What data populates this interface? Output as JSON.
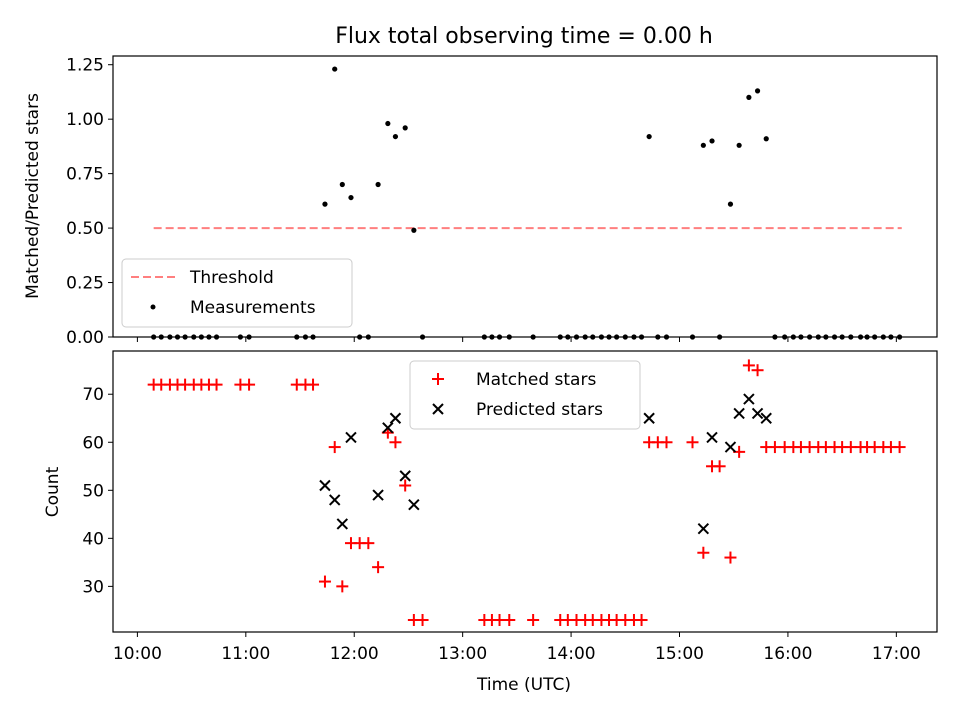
{
  "chart_data": [
    {
      "type": "scatter",
      "title": "Flux total observing time = 0.00 h",
      "xlabel": "",
      "ylabel": "Matched/Predicted stars",
      "xlim": [
        9.775,
        17.375
      ],
      "ylim": [
        0,
        1.29
      ],
      "yticks": [
        0.0,
        0.25,
        0.5,
        0.75,
        1.0,
        1.25
      ],
      "ytick_labels": [
        "0.00",
        "0.25",
        "0.50",
        "0.75",
        "1.00",
        "1.25"
      ],
      "grid": false,
      "legend": "lower-left",
      "threshold": {
        "name": "Threshold",
        "value": 0.5,
        "x": [
          10.15,
          17.05
        ],
        "color": "#ff7f7f"
      },
      "series": [
        {
          "name": "Measurements",
          "color": "#000000",
          "x": [
            10.15,
            10.22,
            10.3,
            10.37,
            10.44,
            10.52,
            10.59,
            10.66,
            10.73,
            10.95,
            11.03,
            11.47,
            11.55,
            11.62,
            11.73,
            11.82,
            11.89,
            11.97,
            12.05,
            12.13,
            12.22,
            12.31,
            12.38,
            12.47,
            12.55,
            12.63,
            13.2,
            13.27,
            13.34,
            13.43,
            13.65,
            13.9,
            13.97,
            14.05,
            14.13,
            14.2,
            14.28,
            14.35,
            14.42,
            14.5,
            14.58,
            14.65,
            14.72,
            14.8,
            14.88,
            15.12,
            15.22,
            15.3,
            15.37,
            15.47,
            15.55,
            15.64,
            15.72,
            15.8,
            15.88,
            15.97,
            16.05,
            16.12,
            16.2,
            16.28,
            16.35,
            16.43,
            16.5,
            16.58,
            16.67,
            16.73,
            16.8,
            16.88,
            16.95,
            17.03
          ],
          "y": [
            0,
            0,
            0,
            0,
            0,
            0,
            0,
            0,
            0,
            0,
            0,
            0,
            0,
            0,
            0.61,
            1.23,
            0.7,
            0.64,
            0,
            0,
            0.7,
            0.98,
            0.92,
            0.96,
            0.49,
            0,
            0,
            0,
            0,
            0,
            0,
            0,
            0,
            0,
            0,
            0,
            0,
            0,
            0,
            0,
            0,
            0,
            0.92,
            0,
            0,
            0,
            0.88,
            0.9,
            0,
            0.61,
            0.88,
            1.1,
            1.13,
            0.91,
            0,
            0,
            0,
            0,
            0,
            0,
            0,
            0,
            0,
            0,
            0,
            0,
            0,
            0,
            0,
            0
          ]
        }
      ]
    },
    {
      "type": "scatter",
      "title": "",
      "xlabel": "Time (UTC)",
      "ylabel": "Count",
      "xlim": [
        9.775,
        17.375
      ],
      "ylim": [
        20.5,
        79
      ],
      "yticks": [
        30,
        40,
        50,
        60,
        70
      ],
      "ytick_labels": [
        "30",
        "40",
        "50",
        "60",
        "70"
      ],
      "xticks": [
        10,
        11,
        12,
        13,
        14,
        15,
        16,
        17
      ],
      "xtick_labels": [
        "10:00",
        "11:00",
        "12:00",
        "13:00",
        "14:00",
        "15:00",
        "16:00",
        "17:00"
      ],
      "grid": false,
      "legend": "upper-center",
      "series": [
        {
          "name": "Matched stars",
          "marker": "+",
          "color": "#ff0000",
          "x": [
            10.15,
            10.22,
            10.3,
            10.37,
            10.44,
            10.52,
            10.59,
            10.66,
            10.73,
            10.95,
            11.03,
            11.47,
            11.55,
            11.62,
            11.73,
            11.82,
            11.89,
            11.97,
            12.05,
            12.13,
            12.22,
            12.31,
            12.38,
            12.47,
            12.55,
            12.63,
            13.2,
            13.27,
            13.34,
            13.43,
            13.65,
            13.9,
            13.97,
            14.05,
            14.13,
            14.2,
            14.28,
            14.35,
            14.42,
            14.5,
            14.58,
            14.65,
            14.72,
            14.8,
            14.88,
            15.12,
            15.22,
            15.3,
            15.37,
            15.47,
            15.55,
            15.64,
            15.72,
            15.8,
            15.88,
            15.97,
            16.05,
            16.12,
            16.2,
            16.28,
            16.35,
            16.43,
            16.5,
            16.58,
            16.67,
            16.73,
            16.8,
            16.88,
            16.95,
            17.03
          ],
          "y": [
            72,
            72,
            72,
            72,
            72,
            72,
            72,
            72,
            72,
            72,
            72,
            72,
            72,
            72,
            31,
            59,
            30,
            39,
            39,
            39,
            34,
            62,
            60,
            51,
            23,
            23,
            23,
            23,
            23,
            23,
            23,
            23,
            23,
            23,
            23,
            23,
            23,
            23,
            23,
            23,
            23,
            23,
            60,
            60,
            60,
            60,
            37,
            55,
            55,
            36,
            58,
            76,
            75,
            59,
            59,
            59,
            59,
            59,
            59,
            59,
            59,
            59,
            59,
            59,
            59,
            59,
            59,
            59,
            59,
            59
          ]
        },
        {
          "name": "Predicted stars",
          "marker": "x",
          "color": "#000000",
          "x": [
            11.73,
            11.82,
            11.89,
            11.97,
            12.22,
            12.31,
            12.38,
            12.47,
            12.55,
            14.72,
            15.22,
            15.3,
            15.47,
            15.55,
            15.64,
            15.72,
            15.8
          ],
          "y": [
            51,
            48,
            43,
            61,
            49,
            63,
            65,
            53,
            47,
            65,
            42,
            61,
            59,
            66,
            69,
            66,
            65
          ]
        }
      ]
    }
  ]
}
